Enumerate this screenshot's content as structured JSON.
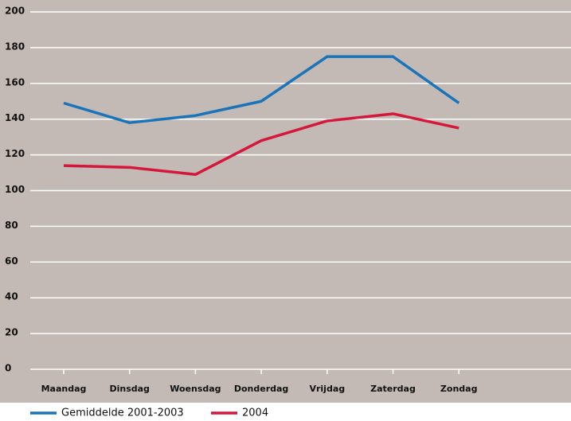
{
  "chart_data": {
    "type": "line",
    "categories": [
      "Maandag",
      "Dinsdag",
      "Woensdag",
      "Donderdag",
      "Vrijdag",
      "Zaterdag",
      "Zondag"
    ],
    "series": [
      {
        "name": "Gemiddelde 2001-2003",
        "color": "#1a74ba",
        "values": [
          149,
          138,
          142,
          150,
          175,
          175,
          149
        ]
      },
      {
        "name": "2004",
        "color": "#d5173c",
        "values": [
          114,
          113,
          109,
          128,
          139,
          143,
          135
        ]
      }
    ],
    "ylim": [
      0,
      200
    ],
    "yticks": [
      0,
      20,
      40,
      60,
      80,
      100,
      120,
      140,
      160,
      180,
      200
    ],
    "grid": true,
    "background": "#c4bab5"
  }
}
